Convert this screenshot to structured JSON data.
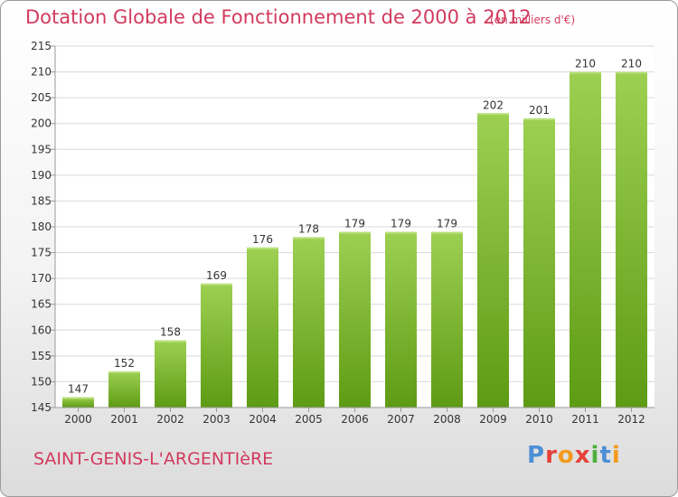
{
  "header": {
    "title": "Dotation Globale de Fonctionnement de 2000 à 2012",
    "subtitle": "(en milliers d'€)"
  },
  "footer": {
    "commune": "SAINT-GENIS-L'ARGENTIèRE",
    "brand_letters": [
      "P",
      "r",
      "o",
      "x",
      "i",
      "t",
      "i"
    ],
    "brand_colors": [
      "#4d8fd6",
      "#e5413a",
      "#f39a1e",
      "#e5413a",
      "#4caf3d",
      "#4d8fd6",
      "#f39a1e"
    ]
  },
  "chart_data": {
    "type": "bar",
    "title": "Dotation Globale de Fonctionnement de 2000 à 2012",
    "subtitle": "(en milliers d'€)",
    "categories": [
      "2000",
      "2001",
      "2002",
      "2003",
      "2004",
      "2005",
      "2006",
      "2007",
      "2008",
      "2009",
      "2010",
      "2011",
      "2012"
    ],
    "values": [
      147,
      152,
      158,
      169,
      176,
      178,
      179,
      179,
      179,
      202,
      201,
      210,
      210
    ],
    "ylim": [
      145,
      215
    ],
    "yticks": [
      145,
      150,
      155,
      160,
      165,
      170,
      175,
      180,
      185,
      190,
      195,
      200,
      205,
      210,
      215
    ],
    "grid": true,
    "bar_color_top": "#9dd052",
    "bar_color_bottom": "#5e9b14",
    "label_color": "#333333",
    "title_color": "#d23a5e"
  }
}
